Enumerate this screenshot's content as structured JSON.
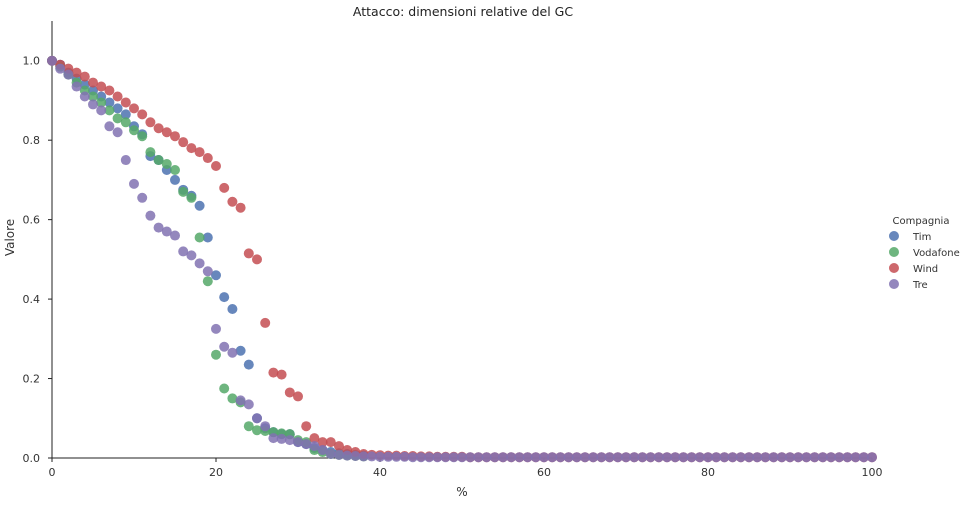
{
  "chart_data": {
    "type": "scatter",
    "title": "Attacco: dimensioni relative del GC",
    "xlabel": "%",
    "ylabel": "Valore",
    "xlim": [
      0,
      100
    ],
    "ylim": [
      0,
      1.1
    ],
    "xticks": [
      0,
      20,
      40,
      60,
      80,
      100
    ],
    "yticks": [
      0.0,
      0.2,
      0.4,
      0.6,
      0.8,
      1.0
    ],
    "grid": false,
    "legend": {
      "title": "Compagnia",
      "placement": "right"
    },
    "series": [
      {
        "name": "Tim",
        "color": "#4c72b0",
        "x": [
          0,
          1,
          2,
          3,
          4,
          5,
          6,
          7,
          8,
          9,
          10,
          11,
          12,
          13,
          14,
          15,
          16,
          17,
          18,
          19,
          20,
          21,
          22,
          23,
          24,
          25,
          26,
          27,
          28,
          29,
          30,
          31,
          32,
          33,
          34,
          35,
          36,
          37,
          38
        ],
        "y": [
          1.0,
          0.99,
          0.97,
          0.955,
          0.94,
          0.925,
          0.91,
          0.895,
          0.88,
          0.865,
          0.835,
          0.815,
          0.76,
          0.75,
          0.725,
          0.7,
          0.675,
          0.66,
          0.635,
          0.555,
          0.46,
          0.405,
          0.375,
          0.27,
          0.235,
          0.1,
          0.075,
          0.065,
          0.06,
          0.06,
          0.04,
          0.035,
          0.025,
          0.02,
          0.015,
          0.012,
          0.01,
          0.008,
          0.006
        ]
      },
      {
        "name": "Vodafone",
        "color": "#55a868",
        "x": [
          0,
          1,
          2,
          3,
          4,
          5,
          6,
          7,
          8,
          9,
          10,
          11,
          12,
          13,
          14,
          15,
          16,
          17,
          18,
          19,
          20,
          21,
          22,
          23,
          24,
          25,
          26,
          27,
          28,
          29,
          30,
          31,
          32,
          33,
          34,
          35,
          36,
          37,
          38
        ],
        "y": [
          1.0,
          0.985,
          0.965,
          0.945,
          0.925,
          0.91,
          0.895,
          0.875,
          0.855,
          0.845,
          0.825,
          0.81,
          0.77,
          0.75,
          0.74,
          0.725,
          0.67,
          0.655,
          0.555,
          0.445,
          0.26,
          0.175,
          0.15,
          0.14,
          0.08,
          0.07,
          0.068,
          0.065,
          0.062,
          0.06,
          0.045,
          0.04,
          0.02,
          0.015,
          0.01,
          0.008,
          0.006,
          0.005,
          0.004
        ]
      },
      {
        "name": "Wind",
        "color": "#c44e52",
        "x": [
          0,
          1,
          2,
          3,
          4,
          5,
          6,
          7,
          8,
          9,
          10,
          11,
          12,
          13,
          14,
          15,
          16,
          17,
          18,
          19,
          20,
          21,
          22,
          23,
          24,
          25,
          26,
          27,
          28,
          29,
          30,
          31,
          32,
          33,
          34,
          35,
          36,
          37,
          38,
          39,
          40,
          41,
          42,
          43,
          44,
          45,
          46,
          47,
          48,
          49,
          50,
          51,
          52,
          53,
          54,
          55,
          56,
          57,
          58,
          59,
          60,
          61,
          62,
          63,
          64,
          65,
          66,
          67,
          68,
          69,
          70,
          71,
          72,
          73,
          74,
          75,
          76,
          77,
          78,
          79,
          80,
          81,
          82,
          83,
          84,
          85,
          86,
          87,
          88,
          89,
          90,
          91,
          92,
          93,
          94,
          95,
          96,
          97,
          98,
          99,
          100
        ],
        "y": [
          1.0,
          0.99,
          0.98,
          0.97,
          0.96,
          0.945,
          0.935,
          0.925,
          0.91,
          0.895,
          0.88,
          0.865,
          0.845,
          0.83,
          0.82,
          0.81,
          0.795,
          0.78,
          0.77,
          0.755,
          0.735,
          0.68,
          0.645,
          0.63,
          0.515,
          0.5,
          0.34,
          0.215,
          0.21,
          0.165,
          0.155,
          0.08,
          0.05,
          0.04,
          0.04,
          0.03,
          0.02,
          0.015,
          0.01,
          0.008,
          0.007,
          0.006,
          0.006,
          0.005,
          0.005,
          0.004,
          0.004,
          0.003,
          0.003,
          0.003,
          0.003,
          0.002,
          0.002,
          0.002,
          0.002,
          0.002,
          0.002,
          0.002,
          0.002,
          0.002,
          0.002,
          0.002,
          0.002,
          0.002,
          0.002,
          0.002,
          0.002,
          0.002,
          0.002,
          0.002,
          0.002,
          0.002,
          0.002,
          0.002,
          0.002,
          0.002,
          0.002,
          0.002,
          0.002,
          0.002,
          0.002,
          0.002,
          0.002,
          0.002,
          0.002,
          0.002,
          0.002,
          0.002,
          0.002,
          0.002,
          0.002,
          0.002,
          0.002,
          0.002,
          0.002,
          0.002,
          0.002,
          0.002,
          0.002,
          0.002,
          0.002
        ]
      },
      {
        "name": "Tre",
        "color": "#8172b2",
        "x": [
          0,
          1,
          2,
          3,
          4,
          5,
          6,
          7,
          8,
          9,
          10,
          11,
          12,
          13,
          14,
          15,
          16,
          17,
          18,
          19,
          20,
          21,
          22,
          23,
          24,
          25,
          26,
          27,
          28,
          29,
          30,
          31,
          32,
          33,
          34,
          35,
          36,
          37,
          38,
          39,
          40,
          41,
          42,
          43,
          44,
          45,
          46,
          47,
          48,
          49,
          50,
          51,
          52,
          53,
          54,
          55,
          56,
          57,
          58,
          59,
          60,
          61,
          62,
          63,
          64,
          65,
          66,
          67,
          68,
          69,
          70,
          71,
          72,
          73,
          74,
          75,
          76,
          77,
          78,
          79,
          80,
          81,
          82,
          83,
          84,
          85,
          86,
          87,
          88,
          89,
          90,
          91,
          92,
          93,
          94,
          95,
          96,
          97,
          98,
          99,
          100
        ],
        "y": [
          1.0,
          0.98,
          0.965,
          0.935,
          0.91,
          0.89,
          0.875,
          0.835,
          0.82,
          0.75,
          0.69,
          0.655,
          0.61,
          0.58,
          0.57,
          0.56,
          0.52,
          0.51,
          0.49,
          0.47,
          0.325,
          0.28,
          0.265,
          0.145,
          0.135,
          0.1,
          0.08,
          0.05,
          0.048,
          0.045,
          0.04,
          0.035,
          0.03,
          0.02,
          0.01,
          0.008,
          0.006,
          0.005,
          0.004,
          0.004,
          0.003,
          0.003,
          0.003,
          0.003,
          0.002,
          0.002,
          0.002,
          0.002,
          0.002,
          0.002,
          0.002,
          0.002,
          0.002,
          0.002,
          0.002,
          0.002,
          0.002,
          0.002,
          0.002,
          0.002,
          0.002,
          0.002,
          0.002,
          0.002,
          0.002,
          0.002,
          0.002,
          0.002,
          0.002,
          0.002,
          0.002,
          0.002,
          0.002,
          0.002,
          0.002,
          0.002,
          0.002,
          0.002,
          0.002,
          0.002,
          0.002,
          0.002,
          0.002,
          0.002,
          0.002,
          0.002,
          0.002,
          0.002,
          0.002,
          0.002,
          0.002,
          0.002,
          0.002,
          0.002,
          0.002,
          0.002,
          0.002,
          0.002,
          0.002,
          0.002,
          0.002
        ]
      }
    ]
  }
}
